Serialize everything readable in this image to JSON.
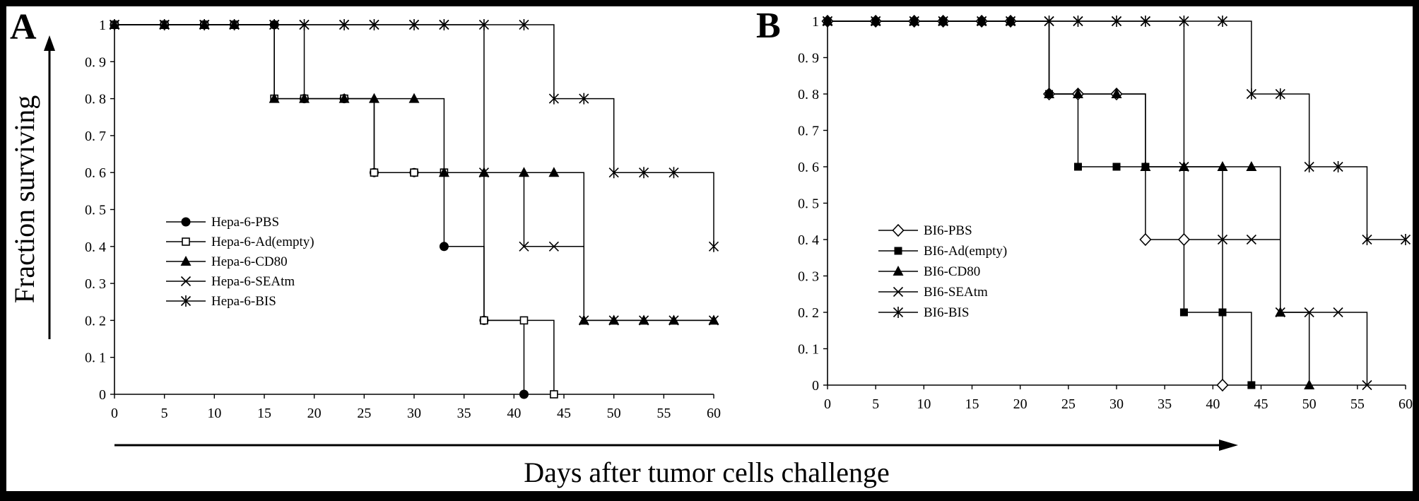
{
  "figure": {
    "y_axis_title": "Fraction surviving",
    "x_axis_title": "Days after tumor cells challenge"
  },
  "chart_data": [
    {
      "type": "line",
      "panel_label": "A",
      "x_ticks": [
        0,
        5,
        10,
        15,
        20,
        25,
        30,
        35,
        40,
        45,
        50,
        55,
        60
      ],
      "y_ticks": [
        0,
        0.1,
        0.2,
        0.3,
        0.4,
        0.5,
        0.6,
        0.7,
        0.8,
        0.9,
        1
      ],
      "y_tick_labels": [
        "0",
        "0. 1",
        "0. 2",
        "0. 3",
        "0. 4",
        "0. 5",
        "0. 6",
        "0. 7",
        "0. 8",
        "0. 9",
        "1"
      ],
      "xlim": [
        0,
        60
      ],
      "ylim": [
        0,
        1
      ],
      "legend_position": "center-left",
      "series": [
        {
          "name": "Hepa-6-PBS",
          "marker": "filled-circle",
          "x": [
            0,
            5,
            9,
            12,
            16,
            19,
            23,
            26,
            30,
            33,
            37,
            41
          ],
          "y": [
            1,
            1,
            1,
            1,
            1,
            0.8,
            0.8,
            0.6,
            0.6,
            0.4,
            0.2,
            0
          ]
        },
        {
          "name": "Hepa-6-Ad(empty)",
          "marker": "open-square",
          "x": [
            0,
            5,
            9,
            12,
            16,
            19,
            23,
            26,
            30,
            33,
            37,
            41,
            44
          ],
          "y": [
            1,
            1,
            1,
            1,
            0.8,
            0.8,
            0.8,
            0.6,
            0.6,
            0.6,
            0.2,
            0.2,
            0
          ]
        },
        {
          "name": "Hepa-6-CD80",
          "marker": "filled-triangle",
          "x": [
            0,
            5,
            9,
            12,
            16,
            19,
            23,
            26,
            30,
            33,
            37,
            41,
            44,
            47,
            50,
            53,
            56,
            60
          ],
          "y": [
            1,
            1,
            1,
            1,
            0.8,
            0.8,
            0.8,
            0.8,
            0.8,
            0.6,
            0.6,
            0.6,
            0.6,
            0.2,
            0.2,
            0.2,
            0.2,
            0.2
          ]
        },
        {
          "name": "Hepa-6-SEAtm",
          "marker": "x",
          "x": [
            0,
            5,
            9,
            12,
            16,
            19,
            23,
            26,
            30,
            33,
            37,
            41,
            44,
            47,
            50,
            53,
            56,
            60
          ],
          "y": [
            1,
            1,
            1,
            1,
            1,
            1,
            1,
            1,
            1,
            1,
            0.6,
            0.4,
            0.4,
            0.2,
            0.2,
            0.2,
            0.2,
            0.2
          ]
        },
        {
          "name": "Hepa-6-BIS",
          "marker": "asterisk",
          "x": [
            0,
            5,
            9,
            12,
            16,
            19,
            23,
            26,
            30,
            33,
            37,
            41,
            44,
            47,
            50,
            53,
            56,
            60
          ],
          "y": [
            1,
            1,
            1,
            1,
            1,
            1,
            1,
            1,
            1,
            1,
            1,
            1,
            0.8,
            0.8,
            0.6,
            0.6,
            0.6,
            0.4
          ]
        }
      ]
    },
    {
      "type": "line",
      "panel_label": "B",
      "x_ticks": [
        0,
        5,
        10,
        15,
        20,
        25,
        30,
        35,
        40,
        45,
        50,
        55,
        60
      ],
      "y_ticks": [
        0,
        0.1,
        0.2,
        0.3,
        0.4,
        0.5,
        0.6,
        0.7,
        0.8,
        0.9,
        1
      ],
      "y_tick_labels": [
        "0",
        "0. 1",
        "0. 2",
        "0. 3",
        "0. 4",
        "0. 5",
        "0. 6",
        "0. 7",
        "0. 8",
        "0. 9",
        "1"
      ],
      "xlim": [
        0,
        60
      ],
      "ylim": [
        0,
        1
      ],
      "legend_position": "center-right",
      "series": [
        {
          "name": "BI6-PBS",
          "marker": "open-diamond",
          "x": [
            0,
            5,
            9,
            12,
            16,
            19,
            23,
            26,
            30,
            33,
            37,
            41
          ],
          "y": [
            1,
            1,
            1,
            1,
            1,
            1,
            0.8,
            0.8,
            0.8,
            0.4,
            0.4,
            0
          ]
        },
        {
          "name": "BI6-Ad(empty)",
          "marker": "filled-square",
          "x": [
            0,
            5,
            9,
            12,
            16,
            19,
            23,
            26,
            30,
            33,
            37,
            41,
            44
          ],
          "y": [
            1,
            1,
            1,
            1,
            1,
            1,
            0.8,
            0.6,
            0.6,
            0.6,
            0.2,
            0.2,
            0
          ]
        },
        {
          "name": "BI6-CD80",
          "marker": "filled-triangle",
          "x": [
            0,
            5,
            9,
            12,
            16,
            19,
            23,
            26,
            30,
            33,
            37,
            41,
            44,
            47,
            50
          ],
          "y": [
            1,
            1,
            1,
            1,
            1,
            1,
            0.8,
            0.8,
            0.8,
            0.6,
            0.6,
            0.6,
            0.6,
            0.2,
            0
          ]
        },
        {
          "name": "BI6-SEAtm",
          "marker": "x",
          "x": [
            0,
            5,
            9,
            12,
            16,
            19,
            23,
            26,
            30,
            33,
            37,
            41,
            44,
            47,
            50,
            53,
            56
          ],
          "y": [
            1,
            1,
            1,
            1,
            1,
            1,
            1,
            1,
            1,
            1,
            0.6,
            0.4,
            0.4,
            0.2,
            0.2,
            0.2,
            0
          ]
        },
        {
          "name": "BI6-BIS",
          "marker": "asterisk",
          "x": [
            0,
            5,
            9,
            12,
            16,
            19,
            23,
            26,
            30,
            33,
            37,
            41,
            44,
            47,
            50,
            53,
            56,
            60
          ],
          "y": [
            1,
            1,
            1,
            1,
            1,
            1,
            1,
            1,
            1,
            1,
            1,
            1,
            0.8,
            0.8,
            0.6,
            0.6,
            0.4,
            0.4
          ]
        }
      ]
    }
  ]
}
